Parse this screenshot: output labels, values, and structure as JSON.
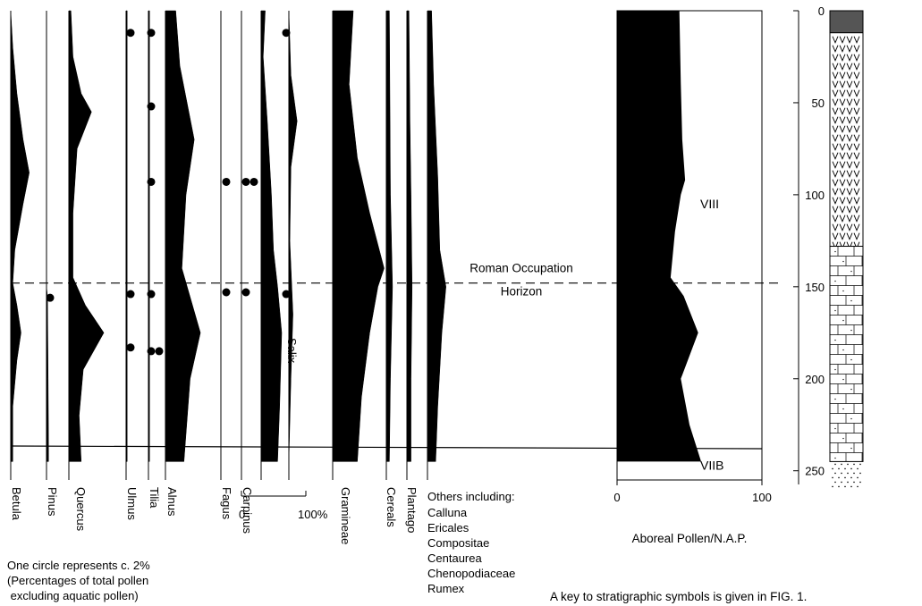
{
  "chart_data": {
    "type": "area",
    "depth_ticks": [
      "0",
      "50",
      "100",
      "150",
      "200",
      "250"
    ],
    "depth_range": [
      0,
      255
    ],
    "taxa": [
      {
        "key": "betula",
        "name": "Betula",
        "profile": [
          [
            0,
            0
          ],
          [
            20,
            1
          ],
          [
            45,
            3
          ],
          [
            70,
            6
          ],
          [
            88,
            9
          ],
          [
            105,
            6
          ],
          [
            130,
            2
          ],
          [
            148,
            1
          ],
          [
            160,
            3
          ],
          [
            175,
            5
          ],
          [
            190,
            3
          ],
          [
            215,
            1
          ],
          [
            245,
            1
          ]
        ]
      },
      {
        "key": "pinus",
        "name": "Pinus",
        "profile": [
          [
            0,
            0
          ],
          [
            150,
            0
          ],
          [
            155,
            0.5
          ],
          [
            200,
            0.8
          ],
          [
            240,
            1
          ],
          [
            245,
            1
          ]
        ]
      },
      {
        "key": "quercus",
        "name": "Quercus",
        "profile": [
          [
            0,
            1
          ],
          [
            25,
            2
          ],
          [
            45,
            6
          ],
          [
            55,
            11
          ],
          [
            75,
            4
          ],
          [
            110,
            2
          ],
          [
            145,
            2
          ],
          [
            160,
            8
          ],
          [
            175,
            17
          ],
          [
            195,
            7
          ],
          [
            220,
            5
          ],
          [
            245,
            6
          ]
        ]
      },
      {
        "key": "ulmus",
        "name": "Ulmus",
        "profile": [
          [
            0,
            0.5
          ],
          [
            245,
            0.5
          ]
        ]
      },
      {
        "key": "tilia",
        "name": "Tilia",
        "profile": [
          [
            0,
            0.5
          ],
          [
            245,
            0.5
          ]
        ]
      },
      {
        "key": "alnus",
        "name": "Alnus",
        "profile": [
          [
            0,
            5
          ],
          [
            30,
            7
          ],
          [
            70,
            14
          ],
          [
            100,
            10
          ],
          [
            140,
            8
          ],
          [
            175,
            17
          ],
          [
            200,
            12
          ],
          [
            245,
            9
          ]
        ]
      },
      {
        "key": "fagus",
        "name": "Fagus",
        "profile": [
          [
            0,
            0
          ],
          [
            245,
            0
          ]
        ]
      },
      {
        "key": "carpinus",
        "name": "Carpinus",
        "profile": [
          [
            0,
            0
          ],
          [
            245,
            0
          ]
        ]
      },
      {
        "key": "corylus",
        "name": "Corylus",
        "profile": [
          [
            0,
            2
          ],
          [
            25,
            1
          ],
          [
            60,
            3
          ],
          [
            100,
            5
          ],
          [
            130,
            6
          ],
          [
            150,
            8
          ],
          [
            175,
            10
          ],
          [
            215,
            9
          ],
          [
            245,
            8
          ]
        ]
      },
      {
        "key": "salix",
        "name": "Salix",
        "profile": [
          [
            0,
            0
          ],
          [
            35,
            1
          ],
          [
            60,
            4
          ],
          [
            85,
            1
          ],
          [
            125,
            0.5
          ],
          [
            165,
            2
          ],
          [
            200,
            1
          ],
          [
            245,
            0
          ]
        ]
      },
      {
        "key": "gramineae",
        "name": "Gramineae",
        "profile": [
          [
            0,
            10
          ],
          [
            40,
            8
          ],
          [
            80,
            12
          ],
          [
            110,
            18
          ],
          [
            140,
            25
          ],
          [
            150,
            22
          ],
          [
            175,
            18
          ],
          [
            210,
            14
          ],
          [
            245,
            12
          ]
        ]
      },
      {
        "key": "cereals",
        "name": "Cereals",
        "profile": [
          [
            0,
            1.5
          ],
          [
            100,
            2
          ],
          [
            150,
            3
          ],
          [
            200,
            2
          ],
          [
            245,
            1.5
          ]
        ]
      },
      {
        "key": "plantago",
        "name": "Plantago",
        "profile": [
          [
            0,
            1
          ],
          [
            60,
            1.5
          ],
          [
            100,
            2
          ],
          [
            150,
            2.5
          ],
          [
            200,
            2
          ],
          [
            245,
            2
          ]
        ]
      },
      {
        "key": "others",
        "name": "Others including:",
        "members": [
          "Calluna",
          "Ericales",
          "Compositae",
          "Centaurea",
          "Chenopodiaceae",
          "Rumex"
        ],
        "profile": [
          [
            0,
            2
          ],
          [
            40,
            3
          ],
          [
            90,
            5
          ],
          [
            130,
            6
          ],
          [
            150,
            9
          ],
          [
            175,
            7
          ],
          [
            215,
            5
          ],
          [
            245,
            4
          ]
        ]
      }
    ],
    "dot_markers": [
      {
        "taxon": "pinus",
        "depths": [
          156
        ]
      },
      {
        "taxon": "ulmus",
        "depths": [
          12,
          154,
          183
        ]
      },
      {
        "taxon": "tilia",
        "depths": [
          12,
          52,
          93,
          154,
          185,
          185
        ]
      },
      {
        "taxon": "fagus",
        "depths": [
          93,
          153
        ]
      },
      {
        "taxon": "carpinus",
        "depths": [
          93,
          93,
          153
        ]
      },
      {
        "taxon": "salix",
        "depths": [
          12,
          154
        ]
      }
    ],
    "scale_bar": {
      "label_min": "0",
      "label_max": "100%"
    },
    "ap_nap": {
      "xlabel": "Aboreal Pollen/N.A.P.",
      "xlim": [
        0,
        100
      ],
      "xticks": [
        "0",
        "100"
      ],
      "profile": [
        [
          0,
          43
        ],
        [
          40,
          44
        ],
        [
          70,
          45
        ],
        [
          92,
          47
        ],
        [
          100,
          44
        ],
        [
          120,
          40
        ],
        [
          145,
          37
        ],
        [
          155,
          46
        ],
        [
          175,
          56
        ],
        [
          200,
          44
        ],
        [
          225,
          50
        ],
        [
          245,
          58
        ]
      ]
    },
    "zones": [
      {
        "label": "VIII",
        "depth": 105
      },
      {
        "label": "VIIB",
        "depth": 247
      }
    ],
    "zone_boundary_depth": 238,
    "occupation_horizon": {
      "depth": 148,
      "label_line1": "Roman Occupation",
      "label_line2": "Horizon"
    },
    "stratigraphy": {
      "top_hatched_to": 12,
      "v_to": 128,
      "brick_to": 245
    }
  },
  "notes": {
    "circle_line1": "One circle represents c. 2%",
    "circle_line2": "(Percentages of total pollen",
    "circle_line3": " excluding aquatic pollen)",
    "key": "A key to stratigraphic symbols is given in FIG. 1."
  }
}
